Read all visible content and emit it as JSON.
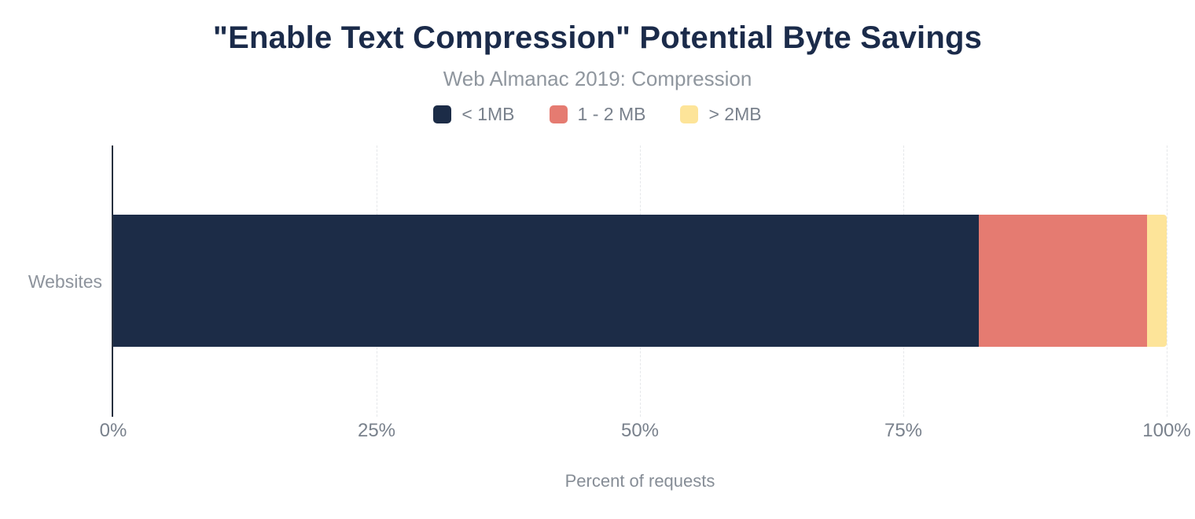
{
  "title": "\"Enable Text Compression\" Potential Byte Savings",
  "subtitle": "Web Almanac 2019: Compression",
  "chart_data": {
    "type": "bar",
    "orientation": "horizontal",
    "stacked": true,
    "title": "\"Enable Text Compression\" Potential Byte Savings",
    "subtitle": "Web Almanac 2019: Compression",
    "categories": [
      "Websites"
    ],
    "series": [
      {
        "name": "< 1MB",
        "color": "#1c2c47",
        "values": [
          82.2
        ]
      },
      {
        "name": "1 - 2 MB",
        "color": "#e57b71",
        "values": [
          15.9
        ]
      },
      {
        "name": "> 2MB",
        "color": "#fde499",
        "values": [
          1.9
        ]
      }
    ],
    "xlabel": "Percent of requests",
    "ylabel": "",
    "xlim": [
      0,
      100
    ],
    "x_ticks": [
      "0%",
      "25%",
      "50%",
      "75%",
      "100%"
    ],
    "grid": "dashed-vertical-25pct",
    "legend_position": "top-center"
  },
  "colors": {
    "background": "#ffffff",
    "title": "#1b2b4a",
    "subtitle": "#8f969e",
    "legend_label": "#79818c",
    "tick_label": "#79818c",
    "axis_title": "#868d96",
    "category_label": "#8d939c",
    "axis_line": "#27303f",
    "gridline": "#e5e7ea"
  }
}
